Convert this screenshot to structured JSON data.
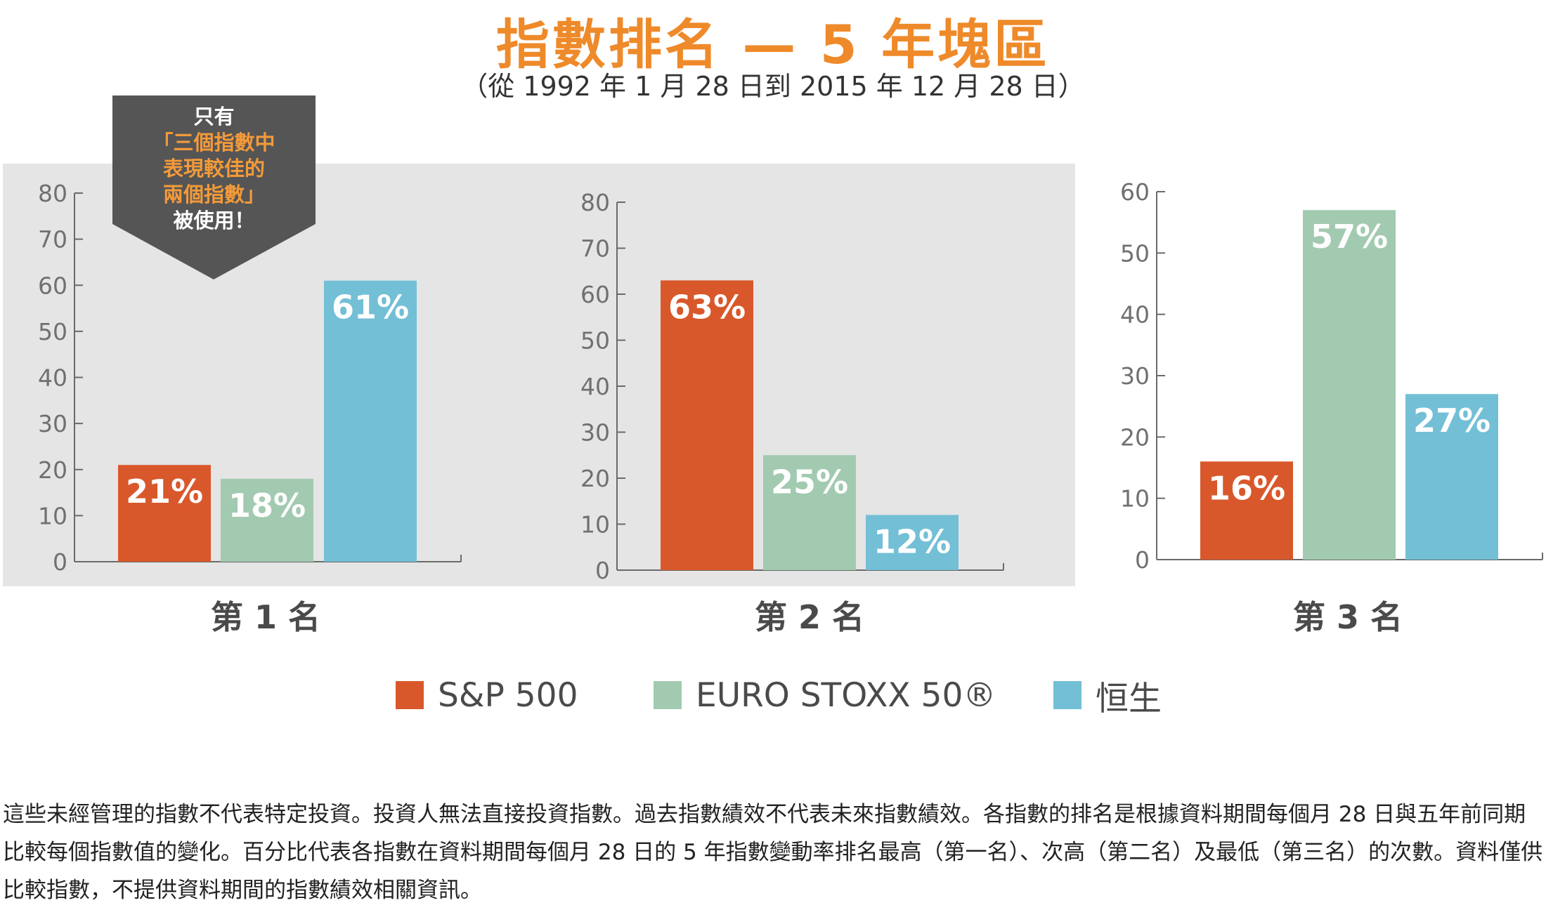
{
  "title": "指數排名 — 5 年塊區",
  "subtitle": "（從 1992 年 1 月 28 日到 2015 年 12 月 28 日）",
  "callout": {
    "line1": "只有",
    "line2": "「三個指數中",
    "line3": "表現較佳的",
    "line4": "兩個指數」",
    "line5": "被使用！"
  },
  "colors": {
    "sp500": "#d9582b",
    "euro": "#a2cab0",
    "hangseng": "#73bfd6",
    "callout_bg": "#555555",
    "panel_bg": "#e5e5e5"
  },
  "chart_data": [
    {
      "type": "bar",
      "title": "第 1 名",
      "categories": [
        "S&P 500",
        "EURO STOXX 50®",
        "恒生"
      ],
      "values": [
        21,
        18,
        61
      ],
      "value_labels": [
        "21%",
        "18%",
        "61%"
      ],
      "ylim": [
        0,
        80
      ],
      "yticks": [
        0,
        10,
        20,
        30,
        40,
        50,
        60,
        70,
        80
      ],
      "grid": false,
      "background": "gray"
    },
    {
      "type": "bar",
      "title": "第 2 名",
      "categories": [
        "S&P 500",
        "EURO STOXX 50®",
        "恒生"
      ],
      "values": [
        63,
        25,
        12
      ],
      "value_labels": [
        "63%",
        "25%",
        "12%"
      ],
      "ylim": [
        0,
        80
      ],
      "yticks": [
        0,
        10,
        20,
        30,
        40,
        50,
        60,
        70,
        80
      ],
      "grid": false,
      "background": "gray"
    },
    {
      "type": "bar",
      "title": "第 3 名",
      "categories": [
        "S&P 500",
        "EURO STOXX 50®",
        "恒生"
      ],
      "values": [
        16,
        57,
        27
      ],
      "value_labels": [
        "16%",
        "57%",
        "27%"
      ],
      "ylim": [
        0,
        60
      ],
      "yticks": [
        0,
        10,
        20,
        30,
        40,
        50,
        60
      ],
      "grid": false,
      "background": "white"
    }
  ],
  "legend": [
    {
      "label": "S&P 500",
      "color": "#d9582b"
    },
    {
      "label": "EURO STOXX 50®",
      "color": "#a2cab0"
    },
    {
      "label": "恒生",
      "color": "#73bfd6"
    }
  ],
  "footnote": "這些未經管理的指數不代表特定投資。投資人無法直接投資指數。過去指數績效不代表未來指數績效。各指數的排名是根據資料期間每個月 28 日與五年前同期比較每個指數值的變化。百分比代表各指數在資料期間每個月 28 日的 5 年指數變動率排名最高（第一名）、次高（第二名）及最低（第三名）的次數。資料僅供比較指數，不提供資料期間的指數績效相關資訊。"
}
